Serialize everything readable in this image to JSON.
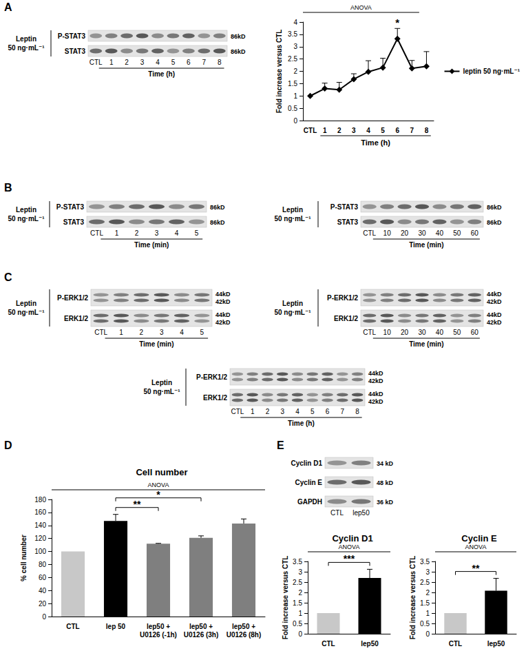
{
  "panel_labels": [
    "A",
    "B",
    "C",
    "D",
    "E"
  ],
  "chart_data": [
    {
      "type": "line",
      "categories": [
        "CTL",
        "1",
        "2",
        "3",
        "4",
        "5",
        "6",
        "7",
        "8"
      ],
      "xlabel": "Time (h)",
      "ylabel": "Fold increase versus CTL",
      "ylim": [
        0,
        4
      ],
      "yticks": [
        0,
        0.5,
        1,
        1.5,
        2,
        2.5,
        3,
        3.5,
        4
      ],
      "grid": false,
      "legend": "right",
      "series": [
        {
          "name": "leptin 50 ng·mL⁻¹",
          "color": "#000000",
          "marker": "diamond",
          "values": [
            1.0,
            1.3,
            1.25,
            1.68,
            1.98,
            2.15,
            3.32,
            2.12,
            2.2
          ],
          "errors": [
            0,
            0.22,
            0.3,
            0.22,
            0.45,
            0.38,
            0.42,
            0.32,
            0.6
          ]
        }
      ],
      "anova": {
        "text": "ANOVA",
        "from": "CTL",
        "to": "7"
      },
      "significance": [
        {
          "text": "*",
          "at": "6"
        }
      ]
    },
    {
      "type": "bar",
      "title": "Cell number",
      "categories": [
        "CTL",
        "lep 50",
        "lep50 +\nU0126 (-1h)",
        "lep50 +\nU0126 (3h)",
        "lep50 +\nU0126 (8h)"
      ],
      "ylabel": "% cell number",
      "ylim": [
        0,
        180
      ],
      "yticks": [
        0,
        20,
        40,
        60,
        80,
        100,
        120,
        140,
        160,
        180
      ],
      "grid": false,
      "values": [
        100,
        147,
        112,
        121,
        143
      ],
      "errors": [
        0,
        10,
        0.5,
        3,
        7
      ],
      "colors": [
        "#c8c8c8",
        "#000000",
        "#7f7f7f",
        "#7f7f7f",
        "#7f7f7f"
      ],
      "anova": {
        "text": "ANOVA",
        "from": "CTL",
        "to": "lep50 +\nU0126 (8h)"
      },
      "significance": [
        {
          "text": "**",
          "from": "lep 50",
          "to": "lep50 +\nU0126 (-1h)"
        },
        {
          "text": "*",
          "from": "lep 50",
          "to": "lep50 +\nU0126 (3h)"
        }
      ]
    },
    {
      "type": "bar",
      "title": "Cyclin D1",
      "categories": [
        "CTL",
        "lep50"
      ],
      "ylabel": "Fold increase versus CTL",
      "ylim": [
        0,
        3.5
      ],
      "yticks": [
        0,
        0.5,
        1,
        1.5,
        2,
        2.5,
        3,
        3.5
      ],
      "grid": false,
      "values": [
        1,
        2.7
      ],
      "errors": [
        0,
        0.42
      ],
      "colors": [
        "#c8c8c8",
        "#000000"
      ],
      "anova": {
        "text": "ANOVA",
        "from": "CTL",
        "to": "lep50"
      },
      "significance": [
        {
          "text": "***",
          "from": "CTL",
          "to": "lep50"
        }
      ]
    },
    {
      "type": "bar",
      "title": "Cyclin E",
      "categories": [
        "CTL",
        "lep50"
      ],
      "ylabel": "Fold increase versus CTL",
      "ylim": [
        0,
        3.5
      ],
      "yticks": [
        0,
        0.5,
        1,
        1.5,
        2,
        2.5,
        3,
        3.5
      ],
      "grid": false,
      "values": [
        1,
        2.08
      ],
      "errors": [
        0,
        0.6
      ],
      "colors": [
        "#c8c8c8",
        "#000000"
      ],
      "anova": {
        "text": "ANOVA",
        "from": "CTL",
        "to": "lep50"
      },
      "significance": [
        {
          "text": "**",
          "from": "CTL",
          "to": "lep50"
        }
      ]
    }
  ],
  "blots": [
    {
      "treatment": [
        "Leptin",
        "50 ng·mL⁻¹"
      ],
      "rows": [
        {
          "label": "P-STAT3",
          "kd": [
            "86kD"
          ]
        },
        {
          "label": "STAT3",
          "kd": [
            "86kD"
          ]
        }
      ],
      "lanes": [
        "CTL",
        "1",
        "2",
        "3",
        "4",
        "5",
        "6",
        "7",
        "8"
      ],
      "time": "Time (h)"
    },
    {
      "treatment": [
        "Leptin",
        "50 ng·mL⁻¹"
      ],
      "rows": [
        {
          "label": "P-STAT3",
          "kd": [
            "86kD"
          ]
        },
        {
          "label": "STAT3",
          "kd": [
            "86kD"
          ]
        }
      ],
      "lanes": [
        "CTL",
        "1",
        "2",
        "3",
        "4",
        "5"
      ],
      "time": "Time (min)"
    },
    {
      "treatment": [
        "Leptin",
        "50 ng·mL⁻¹"
      ],
      "rows": [
        {
          "label": "P-STAT3",
          "kd": [
            "86kD"
          ]
        },
        {
          "label": "STAT3",
          "kd": [
            "86kD"
          ]
        }
      ],
      "lanes": [
        "CTL",
        "10",
        "20",
        "30",
        "40",
        "50",
        "60"
      ],
      "time": "Time (min)"
    },
    {
      "treatment": [
        "Leptin",
        "50 ng·mL⁻¹"
      ],
      "rows": [
        {
          "label": "P-ERK1/2",
          "kd": [
            "44kD",
            "42kD"
          ]
        },
        {
          "label": "ERK1/2",
          "kd": [
            "44kD",
            "42kD"
          ]
        }
      ],
      "lanes": [
        "CTL",
        "1",
        "2",
        "3",
        "4",
        "5"
      ],
      "time": "Time (min)"
    },
    {
      "treatment": [
        "Leptin",
        "50 ng·mL⁻¹"
      ],
      "rows": [
        {
          "label": "P-ERK1/2",
          "kd": [
            "44kD",
            "42kD"
          ]
        },
        {
          "label": "ERK1/2",
          "kd": [
            "44kD",
            "42kD"
          ]
        }
      ],
      "lanes": [
        "CTL",
        "10",
        "20",
        "30",
        "40",
        "50",
        "60"
      ],
      "time": "Time (min)"
    },
    {
      "treatment": [
        "Leptin",
        "50 ng·mL⁻¹"
      ],
      "rows": [
        {
          "label": "P-ERK1/2",
          "kd": [
            "44kD",
            "42kD"
          ]
        },
        {
          "label": "ERK1/2",
          "kd": [
            "44kD",
            "42kD"
          ]
        }
      ],
      "lanes": [
        "CTL",
        "1",
        "2",
        "3",
        "4",
        "5",
        "6",
        "7",
        "8"
      ],
      "time": "Time (h)"
    },
    {
      "rows": [
        {
          "label": "Cyclin D1",
          "kd": [
            "34 kD"
          ]
        },
        {
          "label": "Cyclin E",
          "kd": [
            "48 kD"
          ]
        },
        {
          "label": "GAPDH",
          "kd": [
            "36 kD"
          ]
        }
      ],
      "lanes": [
        "CTL",
        "lep50"
      ]
    }
  ]
}
